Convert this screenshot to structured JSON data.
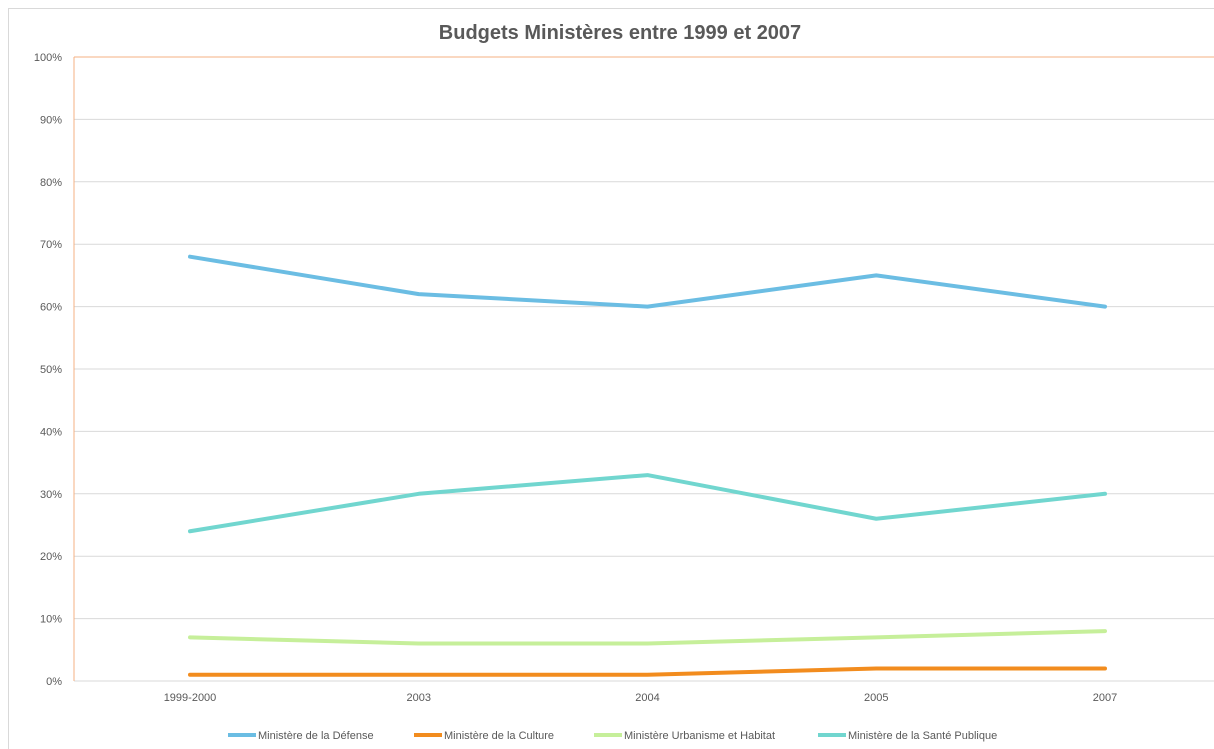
{
  "chart_data": {
    "type": "line",
    "title": "Budgets Ministères entre 1999 et 2007",
    "categories": [
      "1999-2000",
      "2003",
      "2004",
      "2005",
      "2007"
    ],
    "ylim": [
      0,
      100
    ],
    "yticks": [
      "0%",
      "10%",
      "20%",
      "30%",
      "40%",
      "50%",
      "60%",
      "70%",
      "80%",
      "90%",
      "100%"
    ],
    "grid": true,
    "legend_position": "bottom",
    "series": [
      {
        "name": "Ministère de la Défense",
        "color": "#6bbde3",
        "values": [
          68,
          62,
          60,
          65,
          60
        ]
      },
      {
        "name": "Ministère de la Culture",
        "color": "#f28c1e",
        "values": [
          1,
          1,
          1,
          2,
          2
        ]
      },
      {
        "name": "Ministère Urbanisme et Habitat",
        "color": "#c6ef9a",
        "values": [
          7,
          6,
          6,
          7,
          8
        ]
      },
      {
        "name": "Ministère de la Santé Publique",
        "color": "#71d6cf",
        "values": [
          24,
          30,
          33,
          26,
          30
        ]
      }
    ]
  }
}
